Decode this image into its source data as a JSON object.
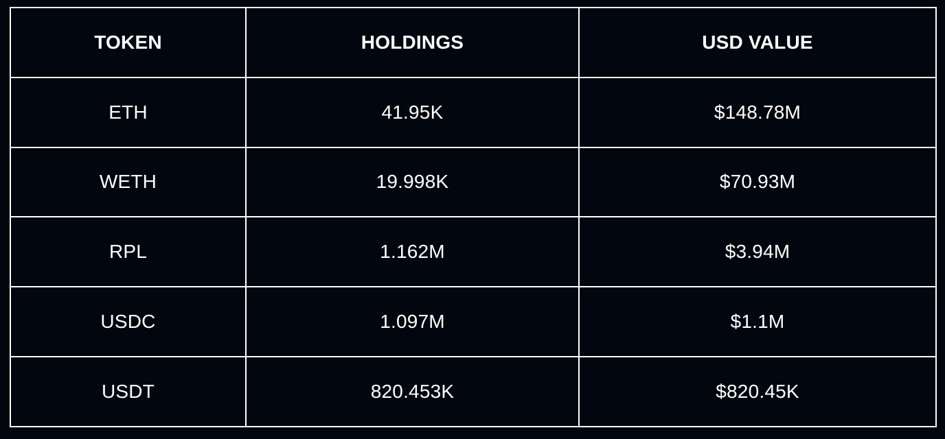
{
  "colors": {
    "background": "#02060e",
    "border": "#ffffff",
    "text": "#ffffff"
  },
  "chart_data": {
    "type": "table",
    "headers": [
      "TOKEN",
      "HOLDINGS",
      "USD VALUE"
    ],
    "rows": [
      {
        "token": "ETH",
        "holdings": "41.95K",
        "usd_value": "$148.78M"
      },
      {
        "token": "WETH",
        "holdings": "19.998K",
        "usd_value": "$70.93M"
      },
      {
        "token": "RPL",
        "holdings": "1.162M",
        "usd_value": "$3.94M"
      },
      {
        "token": "USDC",
        "holdings": "1.097M",
        "usd_value": "$1.1M"
      },
      {
        "token": "USDT",
        "holdings": "820.453K",
        "usd_value": "$820.45K"
      }
    ]
  }
}
